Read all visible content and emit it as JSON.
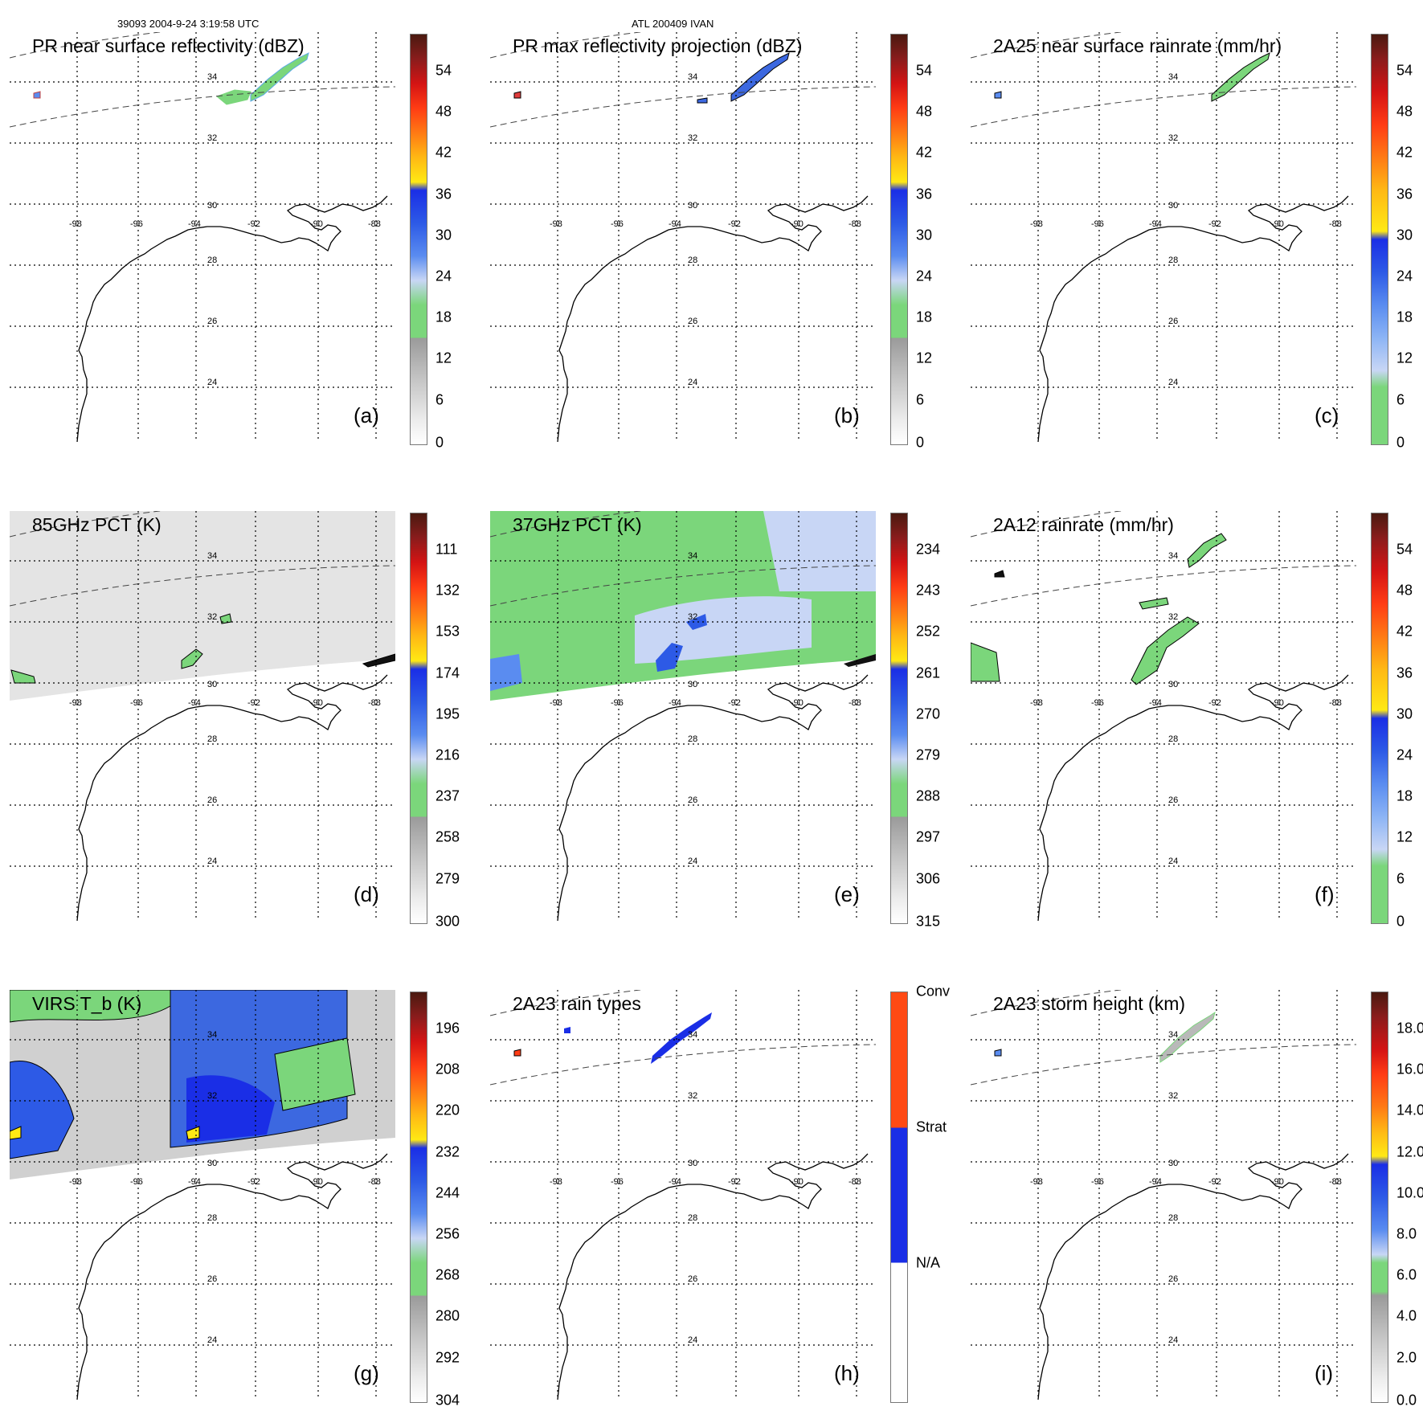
{
  "header": {
    "orbit_time": "39093 2004-9-24 3:19:58 UTC",
    "storm": "ATL 200409 IVAN"
  },
  "grid": {
    "lat_labels": [
      "34",
      "32",
      "30",
      "28",
      "26",
      "24"
    ],
    "lon_labels": [
      "-98",
      "-96",
      "-94",
      "-92",
      "-90",
      "-88"
    ]
  },
  "colors": {
    "coast": "#000000",
    "green": "#7bd67b",
    "lightblue": "#c6d4f5",
    "blue": "#2b55e6",
    "gray": "#b9b9b9"
  },
  "panels": [
    {
      "id": "a",
      "title": "PR near surface reflectivity (dBZ)",
      "label": "(a)",
      "scale": "refl",
      "ticks": [
        "54",
        "48",
        "42",
        "36",
        "30",
        "24",
        "18",
        "12",
        "6",
        "0"
      ]
    },
    {
      "id": "b",
      "title": "PR max reflectivity projection (dBZ)",
      "label": "(b)",
      "scale": "refl",
      "ticks": [
        "54",
        "48",
        "42",
        "36",
        "30",
        "24",
        "18",
        "12",
        "6",
        "0"
      ]
    },
    {
      "id": "c",
      "title": "2A25 near surface rainrate (mm/hr)",
      "label": "(c)",
      "scale": "rain",
      "ticks": [
        "54",
        "48",
        "42",
        "36",
        "30",
        "24",
        "18",
        "12",
        "6",
        "0"
      ]
    },
    {
      "id": "d",
      "title": "85GHz PCT (K)",
      "label": "(d)",
      "scale": "refl",
      "ticks": [
        "111",
        "132",
        "153",
        "174",
        "195",
        "216",
        "237",
        "258",
        "279",
        "300"
      ]
    },
    {
      "id": "e",
      "title": "37GHz PCT (K)",
      "label": "(e)",
      "scale": "refl",
      "ticks": [
        "234",
        "243",
        "252",
        "261",
        "270",
        "279",
        "288",
        "297",
        "306",
        "315"
      ]
    },
    {
      "id": "f",
      "title": "2A12 rainrate (mm/hr)",
      "label": "(f)",
      "scale": "rain",
      "ticks": [
        "54",
        "48",
        "42",
        "36",
        "30",
        "24",
        "18",
        "12",
        "6",
        "0"
      ]
    },
    {
      "id": "g",
      "title": "VIRS T_b (K)",
      "label": "(g)",
      "scale": "refl",
      "ticks": [
        "196",
        "208",
        "220",
        "232",
        "244",
        "256",
        "268",
        "280",
        "292",
        "304"
      ]
    },
    {
      "id": "h",
      "title": "2A23 rain types",
      "label": "(h)",
      "scale": "types",
      "ticks": [
        "Conv",
        "Strat",
        "N/A"
      ]
    },
    {
      "id": "i",
      "title": "2A23 storm height (km)",
      "label": "(i)",
      "scale": "height",
      "ticks": [
        "18.0",
        "16.0",
        "14.0",
        "12.0",
        "10.0",
        "8.0",
        "6.0",
        "4.0",
        "2.0",
        "0.0"
      ]
    }
  ]
}
